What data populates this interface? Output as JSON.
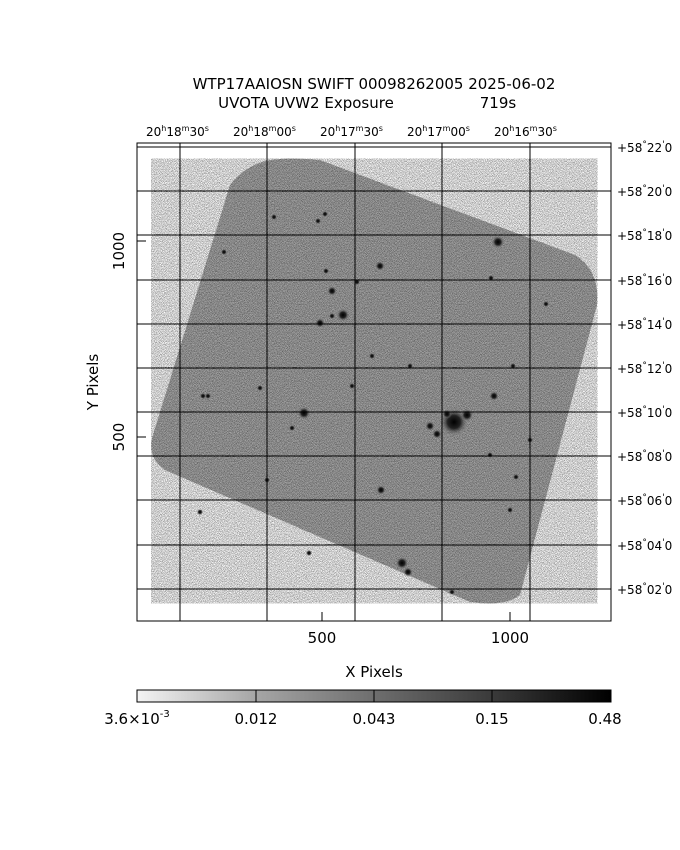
{
  "header": {
    "title_line1": "WTP17AAIOSN SWIFT 00098262005 2025-06-02",
    "title_line2_left": "UVOTA UVW2 Exposure",
    "title_line2_right": "719s"
  },
  "axes": {
    "x_label": "X Pixels",
    "y_label": "Y Pixels",
    "x_ticks": [
      {
        "value": 500,
        "label": "500"
      },
      {
        "value": 1000,
        "label": "1000"
      }
    ],
    "y_ticks": [
      {
        "value": 500,
        "label": "500"
      },
      {
        "value": 1000,
        "label": "1000"
      }
    ],
    "x_range": [
      0,
      1280
    ],
    "y_range": [
      0,
      1230
    ],
    "ra_labels": [
      {
        "h": "20",
        "m": "18",
        "s": "30"
      },
      {
        "h": "20",
        "m": "18",
        "s": "00"
      },
      {
        "h": "20",
        "m": "17",
        "s": "30"
      },
      {
        "h": "20",
        "m": "17",
        "s": "00"
      },
      {
        "h": "20",
        "m": "16",
        "s": "30"
      }
    ],
    "dec_labels": [
      {
        "deg": "+58",
        "min": "22",
        "sec": "0"
      },
      {
        "deg": "+58",
        "min": "20",
        "sec": "0"
      },
      {
        "deg": "+58",
        "min": "18",
        "sec": "0"
      },
      {
        "deg": "+58",
        "min": "16",
        "sec": "0"
      },
      {
        "deg": "+58",
        "min": "14",
        "sec": "0"
      },
      {
        "deg": "+58",
        "min": "12",
        "sec": "0"
      },
      {
        "deg": "+58",
        "min": "10",
        "sec": "0"
      },
      {
        "deg": "+58",
        "min": "08",
        "sec": "0"
      },
      {
        "deg": "+58",
        "min": "06",
        "sec": "0"
      },
      {
        "deg": "+58",
        "min": "04",
        "sec": "0"
      },
      {
        "deg": "+58",
        "min": "02",
        "sec": "0"
      }
    ]
  },
  "colorbar": {
    "labels": [
      {
        "mantissa": "3.6",
        "exponent": "-3"
      },
      {
        "text": "0.012"
      },
      {
        "text": "0.043"
      },
      {
        "text": "0.15"
      },
      {
        "text": "0.48"
      }
    ],
    "scale_min": 0.0036,
    "scale_max": 0.48
  },
  "colors": {
    "image_gray": "#a8a8a8",
    "grid": "#000000",
    "background": "#ffffff"
  }
}
